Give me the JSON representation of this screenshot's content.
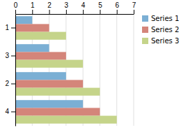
{
  "chart_data": {
    "type": "bar",
    "orientation": "horizontal",
    "categories": [
      "1",
      "3",
      "2",
      "4"
    ],
    "series": [
      {
        "name": "Series 1",
        "color": "#7bafd4",
        "values": [
          1,
          2,
          3,
          4
        ]
      },
      {
        "name": "Series 2",
        "color": "#d4857a",
        "values": [
          2,
          3,
          4,
          5
        ]
      },
      {
        "name": "Series 3",
        "color": "#c5d48a",
        "values": [
          3,
          4,
          5,
          6
        ]
      }
    ],
    "xlim": [
      0,
      7
    ],
    "xticks": [
      0,
      1,
      2,
      3,
      4,
      5,
      6,
      7
    ],
    "grid": true,
    "legend": "right"
  }
}
